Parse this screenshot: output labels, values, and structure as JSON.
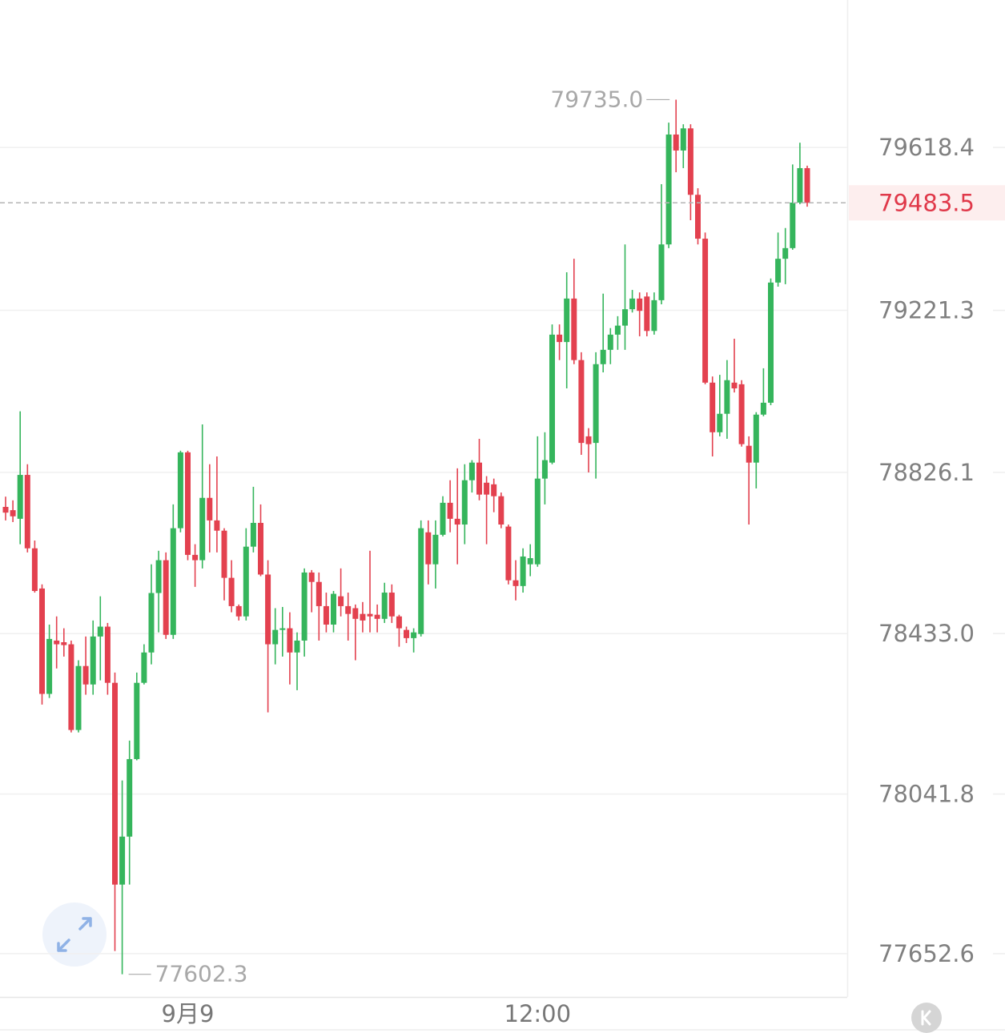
{
  "chart_data": {
    "type": "candlestick",
    "categories": [
      null,
      null,
      null,
      null,
      null,
      null,
      null,
      null,
      null,
      null,
      null,
      null,
      null,
      null,
      null,
      null,
      null,
      null,
      null,
      null,
      null,
      null,
      null,
      null,
      null,
      "9月9",
      null,
      null,
      null,
      null,
      null,
      null,
      null,
      null,
      null,
      null,
      null,
      null,
      null,
      null,
      null,
      null,
      null,
      null,
      null,
      null,
      null,
      null,
      null,
      null,
      null,
      null,
      null,
      null,
      null,
      null,
      null,
      null,
      null,
      null,
      null,
      null,
      null,
      null,
      null,
      null,
      null,
      null,
      null,
      null,
      null,
      null,
      null,
      "12:00",
      null,
      null,
      null,
      null,
      null,
      null,
      null,
      null,
      null,
      null,
      null,
      null,
      null,
      null,
      null,
      null,
      null,
      null,
      null,
      null,
      null,
      null,
      null,
      null,
      null,
      null,
      null,
      null,
      null,
      null,
      null,
      null,
      null,
      null,
      null,
      null,
      null
    ],
    "open": [
      78742,
      78734,
      78713,
      78820,
      78641,
      78543,
      78286,
      78416,
      78412,
      78407,
      78198,
      78354,
      78309,
      78426,
      78450,
      78313,
      77821,
      77938,
      78127,
      78313,
      78387,
      78532,
      78612,
      78430,
      78690,
      78875,
      78625,
      78612,
      78764,
      78709,
      78684,
      78569,
      78500,
      78475,
      78645,
      78703,
      78577,
      78407,
      78442,
      78446,
      78387,
      78416,
      78582,
      78559,
      78500,
      78455,
      78524,
      78500,
      78495,
      78481,
      78481,
      78479,
      78469,
      78533,
      78475,
      78442,
      78422,
      78432,
      78680,
      78602,
      78674,
      78752,
      78713,
      78699,
      78807,
      78850,
      78801,
      78797,
      78768,
      78694,
      78563,
      78549,
      78602,
      78602,
      78811,
      78850,
      79162,
      79144,
      79250,
      79100,
      78914,
      78898,
      79090,
      79125,
      79162,
      79184,
      79224,
      79250,
      79255,
      79171,
      79246,
      79382,
      79650,
      79611,
      79665,
      79503,
      79396,
      79045,
      78924,
      78969,
      79045,
      79041,
      78891,
      78850,
      78967,
      78996,
      79289,
      79347,
      79373,
      79484,
      79568
    ],
    "high": [
      78767,
      78758,
      78975,
      78846,
      78660,
      78553,
      78455,
      78475,
      78446,
      78416,
      78368,
      78426,
      78465,
      78524,
      78459,
      78338,
      78075,
      78172,
      78338,
      78407,
      78602,
      78635,
      78631,
      78748,
      78879,
      78879,
      78651,
      78943,
      78846,
      78865,
      78690,
      78612,
      78504,
      78690,
      78791,
      78748,
      78612,
      78495,
      78498,
      78485,
      78436,
      78592,
      78588,
      78582,
      78533,
      78537,
      78592,
      78533,
      78504,
      78510,
      78635,
      78504,
      78557,
      78553,
      78479,
      78450,
      78446,
      78709,
      78709,
      78709,
      78768,
      78807,
      78836,
      78846,
      78856,
      78908,
      78817,
      78811,
      78777,
      78699,
      78612,
      78641,
      78651,
      78914,
      78924,
      79187,
      79187,
      79314,
      79347,
      79119,
      78934,
      79119,
      79262,
      79178,
      79207,
      79382,
      79271,
      79265,
      79265,
      79265,
      79529,
      79679,
      79735.0,
      79675,
      79675,
      79519,
      79411,
      79060,
      79064,
      79100,
      79152,
      79051,
      78914,
      78973,
      79080,
      79299,
      79411,
      79422,
      79577,
      79630,
      79574
    ],
    "low": [
      78709,
      78705,
      78651,
      78631,
      78533,
      78260,
      78276,
      78348,
      78377,
      78192,
      78192,
      78284,
      78284,
      78319,
      78284,
      77659,
      77602.3,
      77821,
      78124,
      78309,
      78358,
      78436,
      78420,
      78420,
      78680,
      78612,
      78547,
      78592,
      78631,
      78631,
      78514,
      78485,
      78465,
      78465,
      78631,
      78573,
      78241,
      78358,
      78377,
      78309,
      78295,
      78377,
      78485,
      78416,
      78436,
      78436,
      78475,
      78416,
      78368,
      78436,
      78436,
      78436,
      78459,
      78459,
      78401,
      78410,
      78387,
      78426,
      78553,
      78543,
      78670,
      78680,
      78602,
      78651,
      78777,
      78758,
      78651,
      78729,
      78690,
      78553,
      78514,
      78533,
      78573,
      78596,
      78748,
      78846,
      79100,
      79031,
      79090,
      78869,
      78826,
      78811,
      79070,
      79090,
      79125,
      79125,
      79216,
      79158,
      79158,
      79162,
      79236,
      79373,
      79558,
      79568,
      79441,
      79382,
      79041,
      78865,
      78914,
      78908,
      79021,
      78889,
      78699,
      78787,
      78963,
      78990,
      79279,
      79285,
      79369,
      79480,
      79474
    ],
    "close": [
      78728,
      78719,
      78820,
      78641,
      78537,
      78286,
      78420,
      78407,
      78405,
      78198,
      78354,
      78309,
      78426,
      78450,
      78313,
      77821,
      77938,
      78127,
      78313,
      78387,
      78532,
      78612,
      78430,
      78690,
      78875,
      78625,
      78612,
      78764,
      78709,
      78684,
      78569,
      78500,
      78475,
      78645,
      78703,
      78577,
      78407,
      78442,
      78446,
      78387,
      78416,
      78582,
      78559,
      78500,
      78455,
      78530,
      78500,
      78481,
      78469,
      78465,
      78475,
      78469,
      78533,
      78475,
      78446,
      78422,
      78436,
      78690,
      78602,
      78674,
      78752,
      78713,
      78699,
      78807,
      78850,
      78772,
      78772,
      78768,
      78699,
      78563,
      78549,
      78621,
      78617,
      78811,
      78856,
      79162,
      79144,
      79250,
      79100,
      78898,
      78895,
      79090,
      79125,
      79162,
      79184,
      79224,
      79250,
      79220,
      79171,
      79246,
      79382,
      79650,
      79611,
      79665,
      79503,
      79396,
      79045,
      78924,
      78969,
      79051,
      79031,
      78895,
      78850,
      78967,
      78996,
      79289,
      79347,
      79373,
      79484,
      79568,
      79483.5
    ],
    "up_color": "#35b55c",
    "down_color": "#e3414f",
    "extreme_labels": {
      "high": "79735.0",
      "low": "77602.3"
    },
    "ylim": [
      77547,
      79978
    ],
    "yticks": [
      77652.6,
      78041.8,
      {
        "value": 78433,
        "label": "78433.0"
      },
      78826.1,
      79221.3,
      79618.4
    ],
    "grid": true
  }
}
